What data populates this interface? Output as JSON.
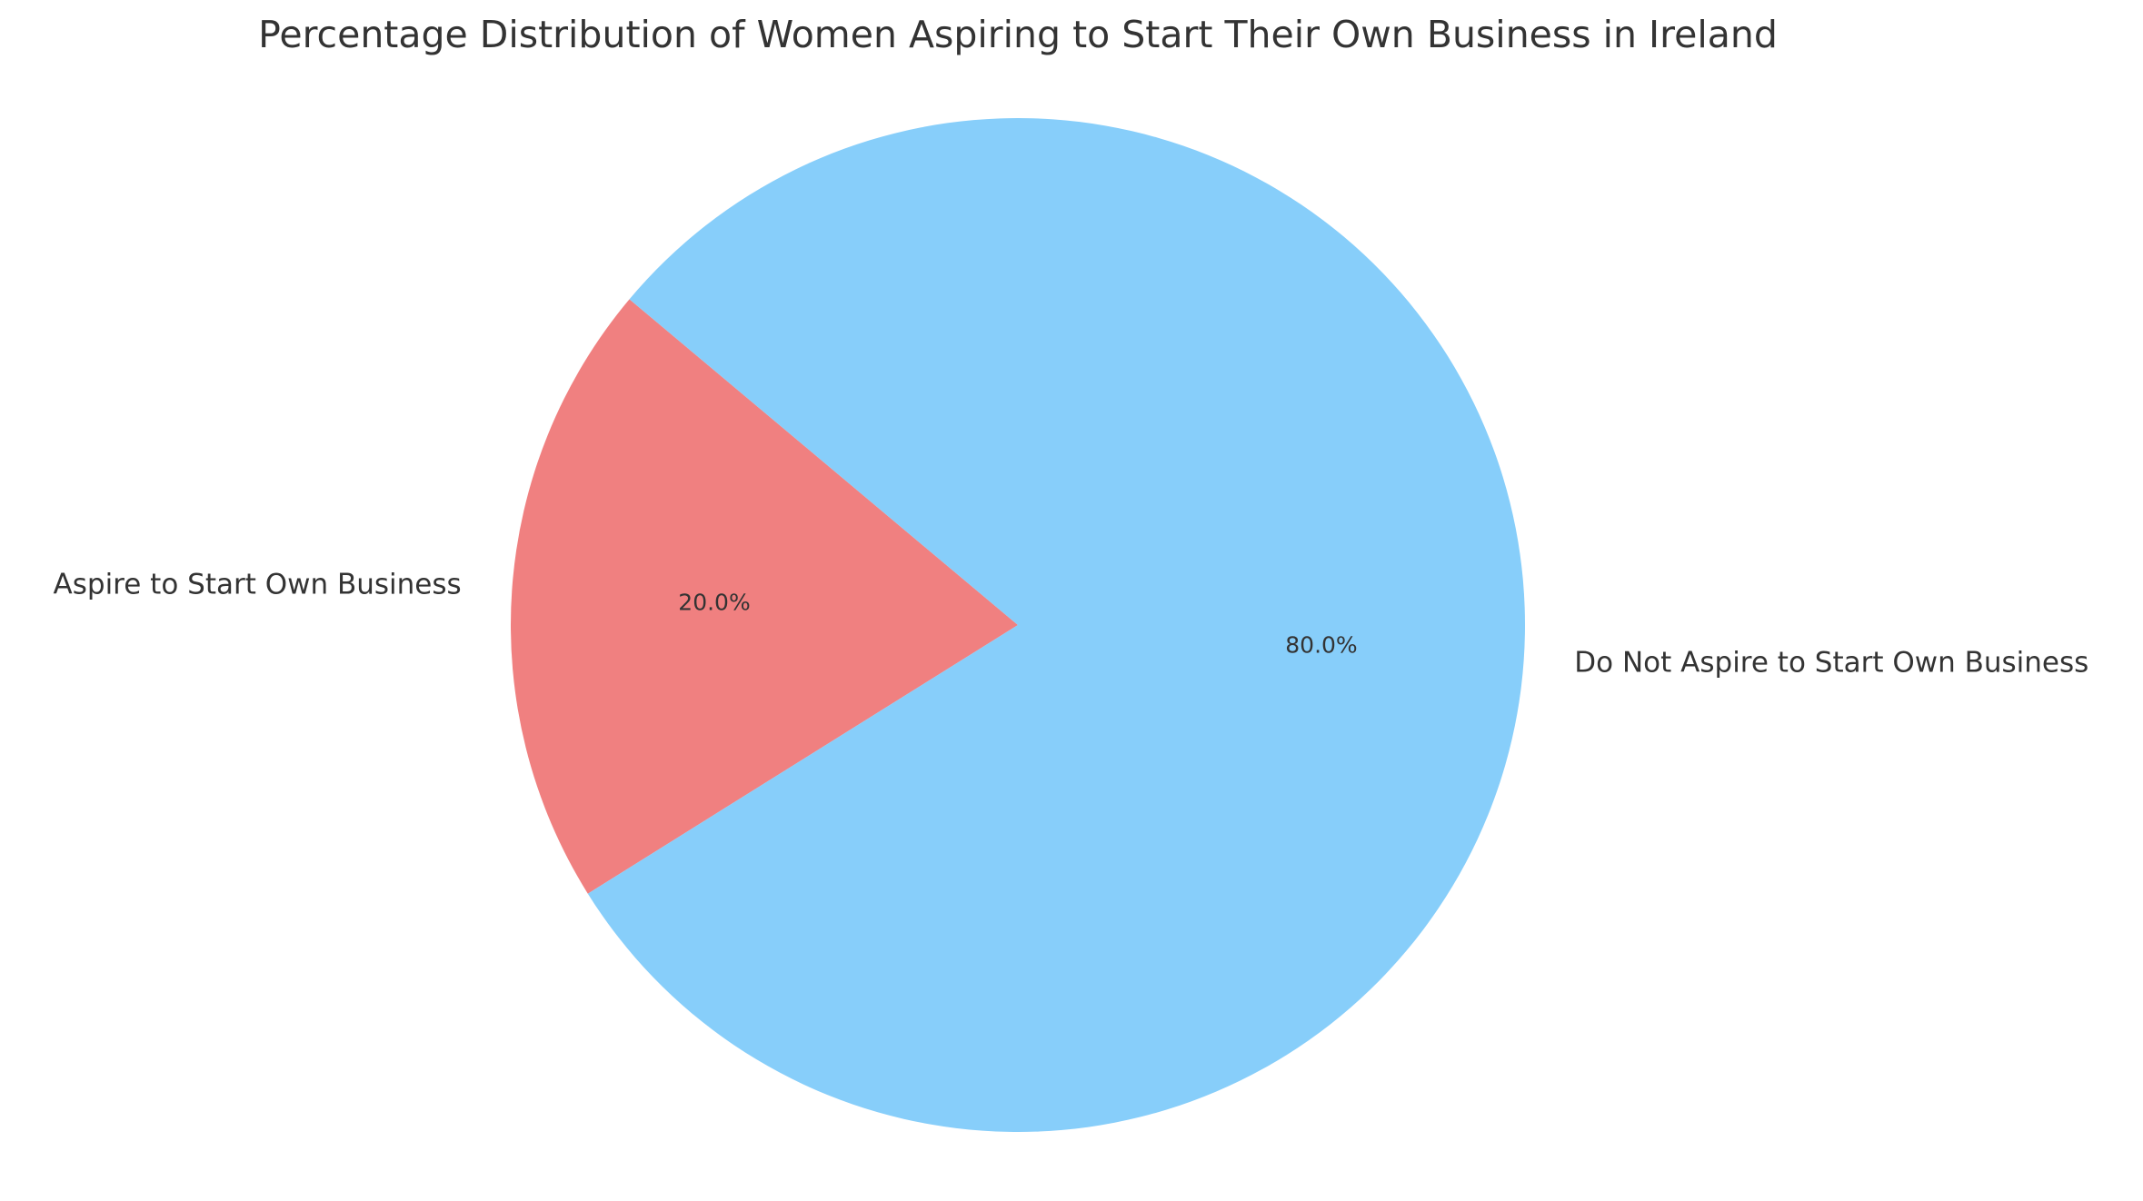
{
  "chart_data": {
    "type": "pie",
    "title": "Percentage Distribution of Women Aspiring to Start Their Own Business in Ireland",
    "categories": [
      "Aspire to Start Own Business",
      "Do Not Aspire to Start Own Business"
    ],
    "values": [
      20.0,
      80.0
    ],
    "value_labels": [
      "20.0%",
      "80.0%"
    ],
    "colors": [
      "#F08080",
      "#87CEFA"
    ],
    "start_angle_deg": 140,
    "direction": "counterclockwise",
    "legend": "none"
  }
}
